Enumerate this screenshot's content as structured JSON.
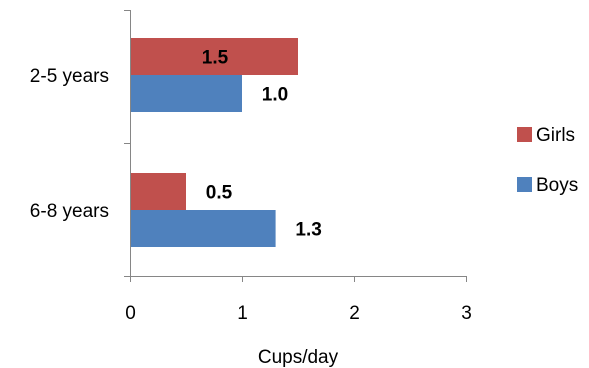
{
  "chart_data": {
    "type": "bar",
    "orientation": "horizontal",
    "categories": [
      "2-5 years",
      "6-8 years"
    ],
    "series": [
      {
        "name": "Girls",
        "values": [
          1.5,
          0.5
        ],
        "color": "#C0504D"
      },
      {
        "name": "Boys",
        "values": [
          1.0,
          1.3
        ],
        "color": "#4F81BD"
      }
    ],
    "data_labels": [
      [
        "1.5",
        "0.5"
      ],
      [
        "1.0",
        "1.3"
      ]
    ],
    "xlabel": "Cups/day",
    "ylabel": "",
    "title": "",
    "xlim": [
      0,
      3
    ],
    "xticks": [
      "0",
      "1",
      "2",
      "3"
    ],
    "grid": false,
    "legend_position": "right"
  }
}
